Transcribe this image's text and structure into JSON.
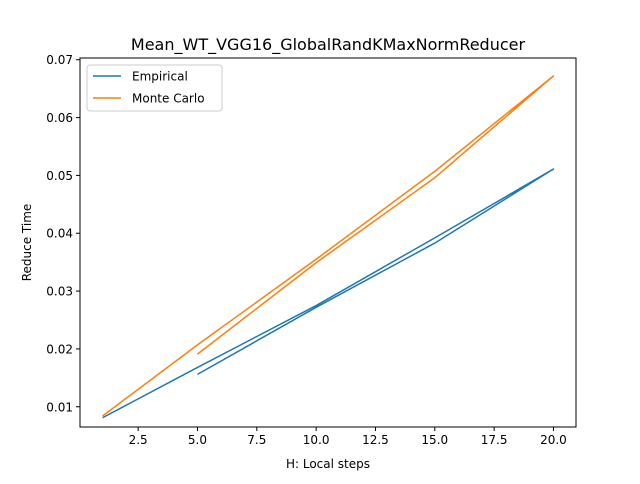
{
  "chart_data": {
    "type": "line",
    "title": "Mean_WT_VGG16_GlobalRandKMaxNormReducer",
    "xlabel": "H: Local steps",
    "ylabel": "Reduce Time",
    "xlim": [
      0.05,
      20.95
    ],
    "ylim": [
      0.0065,
      0.0703
    ],
    "xticks": [
      2.5,
      5.0,
      7.5,
      10.0,
      12.5,
      15.0,
      17.5,
      20.0
    ],
    "xtick_labels": [
      "2.5",
      "5.0",
      "7.5",
      "10.0",
      "12.5",
      "15.0",
      "17.5",
      "20.0"
    ],
    "yticks": [
      0.01,
      0.02,
      0.03,
      0.04,
      0.05,
      0.06,
      0.07
    ],
    "ytick_labels": [
      "0.01",
      "0.02",
      "0.03",
      "0.04",
      "0.05",
      "0.06",
      "0.07"
    ],
    "grid": false,
    "legend_position": "upper-left",
    "series": [
      {
        "name": "Empirical",
        "color": "#1f77b4",
        "x": [
          1,
          5,
          10,
          15,
          20,
          15,
          10,
          5
        ],
        "y": [
          0.0081,
          0.0168,
          0.0275,
          0.0392,
          0.0511,
          0.0383,
          0.0272,
          0.0156
        ]
      },
      {
        "name": "Monte Carlo",
        "color": "#ff7f0e",
        "x": [
          1,
          5,
          10,
          15,
          20,
          15,
          10,
          5
        ],
        "y": [
          0.0084,
          0.0207,
          0.0355,
          0.0507,
          0.0672,
          0.0496,
          0.0349,
          0.0191
        ]
      }
    ]
  }
}
